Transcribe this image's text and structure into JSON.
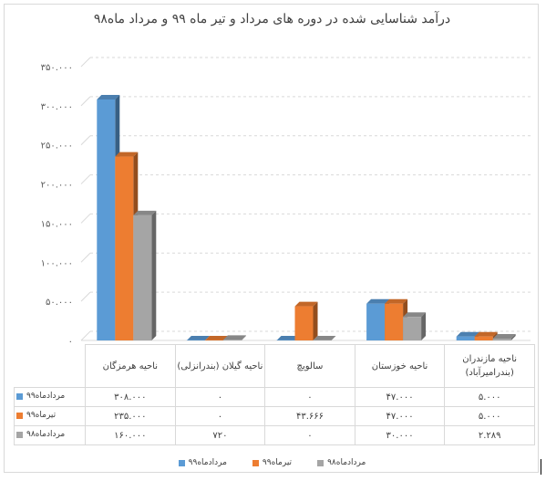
{
  "chart_data": {
    "type": "bar",
    "title": "درآمد شناسایی شده در دوره های مرداد و تیر ماه ۹۹ و مرداد ماه۹۸",
    "categories": [
      "ناحیه هرمزگان",
      "ناحیه گیلان (بندرانزلی)",
      "سالویچ",
      "ناحیه خوزستان",
      "ناحیه مازندران (بندرامیرآباد)"
    ],
    "series": [
      {
        "name": "مردادماه۹۹",
        "color": "#5b9bd5",
        "values": [
          308000,
          0,
          0,
          47000,
          5000
        ],
        "labels": [
          "۳۰۸.۰۰۰",
          "۰",
          "۰",
          "۴۷.۰۰۰",
          "۵.۰۰۰"
        ]
      },
      {
        "name": "تیرماه۹۹",
        "color": "#ed7d31",
        "values": [
          235000,
          0,
          43666,
          47000,
          5000
        ],
        "labels": [
          "۲۳۵.۰۰۰",
          "۰",
          "۴۳.۶۶۶",
          "۴۷.۰۰۰",
          "۵.۰۰۰"
        ]
      },
      {
        "name": "مردادماه۹۸",
        "color": "#a5a5a5",
        "values": [
          160000,
          720,
          0,
          30000,
          2289
        ],
        "labels": [
          "۱۶۰.۰۰۰",
          "۷۲۰",
          "۰",
          "۳۰.۰۰۰",
          "۲.۲۸۹"
        ]
      }
    ],
    "ylim": [
      0,
      350000
    ],
    "yticks": [
      0,
      50000,
      100000,
      150000,
      200000,
      250000,
      300000,
      350000
    ],
    "ytick_labels": [
      "۰",
      "۵۰.۰۰۰",
      "۱۰۰.۰۰۰",
      "۱۵۰.۰۰۰",
      "۲۰۰.۰۰۰",
      "۲۵۰.۰۰۰",
      "۳۰۰.۰۰۰",
      "۳۵۰.۰۰۰"
    ],
    "grid": true,
    "legend": "bottom"
  }
}
